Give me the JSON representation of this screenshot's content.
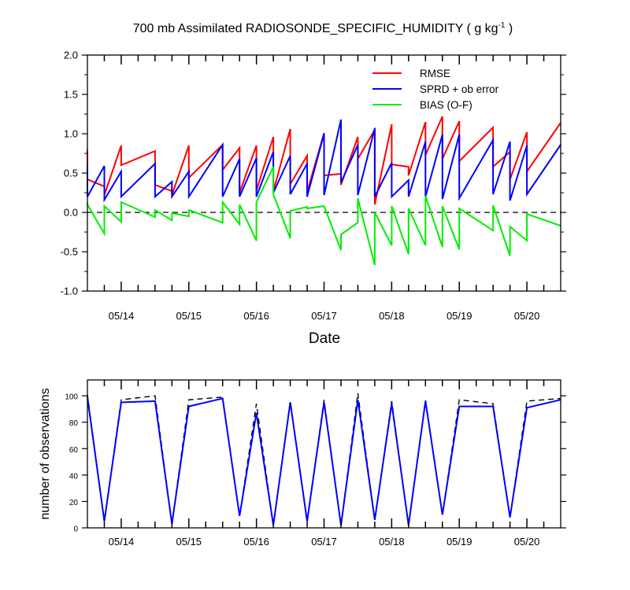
{
  "colors": {
    "rmse": "#ff0000",
    "sprd": "#0000ff",
    "bias": "#00ee00",
    "obs_possible": "#000000",
    "obs_used": "#0000ff",
    "axis": "#000000"
  },
  "chart_data": [
    {
      "type": "line",
      "title_main": "700 mb Assimilated RADIOSONDE_SPECIFIC_HUMIDITY ( g kg",
      "title_sup": "-1",
      "title_end": " )",
      "xlabel": "Date",
      "ylabel": "",
      "xlim": [
        0,
        168
      ],
      "ylim": [
        -1.0,
        2.0
      ],
      "yticks": [
        -1.0,
        -0.5,
        0.0,
        0.5,
        1.0,
        1.5,
        2.0
      ],
      "ytick_labels": [
        "-1.0",
        "-0.5",
        "0.0",
        "0.5",
        "1.0",
        "1.5",
        "2.0"
      ],
      "xticks": [
        12,
        36,
        60,
        84,
        108,
        132,
        156
      ],
      "xtick_labels": [
        "05/14",
        "05/15",
        "05/16",
        "05/17",
        "05/18",
        "05/19",
        "05/20"
      ],
      "zero_line": true,
      "legend": [
        {
          "key": "rmse",
          "label": "RMSE"
        },
        {
          "key": "sprd",
          "label": "SPRD + ob error"
        },
        {
          "key": "bias",
          "label": "BIAS (O-F)"
        }
      ],
      "series": [
        {
          "name": "RMSE",
          "key": "rmse",
          "x": [
            0,
            0,
            6,
            6,
            12,
            12,
            24,
            24,
            30,
            30,
            36,
            36,
            48,
            48,
            54,
            54,
            60,
            60,
            66,
            66,
            72,
            72,
            78,
            78,
            84,
            84,
            90,
            90,
            96,
            96,
            102,
            102,
            108,
            108,
            114,
            114,
            120,
            120,
            126,
            126,
            132,
            132,
            144,
            144,
            150,
            150,
            156,
            156,
            168
          ],
          "y": [
            0.8,
            0.42,
            0.33,
            0.22,
            0.85,
            0.6,
            0.78,
            0.35,
            0.27,
            0.22,
            0.85,
            0.44,
            0.86,
            0.54,
            0.82,
            0.25,
            0.85,
            0.28,
            0.96,
            0.27,
            1.06,
            0.36,
            0.72,
            0.26,
            1.01,
            0.47,
            0.49,
            0.35,
            0.96,
            0.68,
            1.05,
            0.1,
            1.12,
            0.61,
            0.58,
            0.47,
            1.15,
            0.73,
            1.22,
            0.68,
            1.16,
            0.65,
            1.08,
            0.58,
            0.77,
            0.42,
            1.02,
            0.52,
            1.14
          ]
        },
        {
          "name": "SPRD + ob error",
          "key": "sprd",
          "x": [
            0,
            0,
            6,
            6,
            12,
            12,
            24,
            24,
            30,
            30,
            36,
            36,
            48,
            48,
            54,
            54,
            60,
            60,
            66,
            66,
            72,
            72,
            78,
            78,
            84,
            84,
            90,
            90,
            96,
            96,
            102,
            102,
            108,
            108,
            114,
            114,
            120,
            120,
            126,
            126,
            132,
            132,
            144,
            144,
            150,
            150,
            156,
            156,
            168
          ],
          "y": [
            0.59,
            0.2,
            0.59,
            0.16,
            0.52,
            0.2,
            0.62,
            0.2,
            0.39,
            0.2,
            0.52,
            0.2,
            0.86,
            0.2,
            0.68,
            0.2,
            0.69,
            0.2,
            0.77,
            0.25,
            0.72,
            0.23,
            0.62,
            0.2,
            1.0,
            0.22,
            1.18,
            0.38,
            0.86,
            0.22,
            1.07,
            0.2,
            0.63,
            0.2,
            0.41,
            0.2,
            0.9,
            0.2,
            0.99,
            0.17,
            0.99,
            0.18,
            0.92,
            0.23,
            0.9,
            0.15,
            0.85,
            0.23,
            0.86
          ]
        },
        {
          "name": "BIAS (O-F)",
          "key": "bias",
          "x": [
            0,
            0,
            6,
            6,
            12,
            12,
            24,
            24,
            30,
            30,
            36,
            36,
            48,
            48,
            54,
            54,
            60,
            60,
            66,
            66,
            72,
            72,
            78,
            78,
            84,
            84,
            90,
            90,
            96,
            96,
            102,
            102,
            108,
            108,
            114,
            114,
            120,
            120,
            126,
            126,
            132,
            132,
            144,
            144,
            150,
            150,
            156,
            156,
            168
          ],
          "y": [
            0.12,
            0.1,
            -0.27,
            0.08,
            -0.12,
            0.13,
            -0.06,
            0.03,
            -0.1,
            -0.01,
            -0.05,
            0.03,
            -0.13,
            0.13,
            -0.15,
            0.1,
            -0.36,
            0.13,
            0.58,
            0.23,
            -0.33,
            0.02,
            0.07,
            0.05,
            0.08,
            0.08,
            -0.48,
            -0.28,
            -0.13,
            0.18,
            -0.67,
            0.0,
            -0.42,
            0.08,
            -0.53,
            0.05,
            -0.42,
            0.21,
            -0.44,
            0.08,
            -0.47,
            0.05,
            -0.23,
            0.09,
            -0.55,
            -0.18,
            -0.36,
            -0.02,
            -0.17
          ]
        }
      ]
    },
    {
      "type": "line",
      "title": "",
      "xlabel": "",
      "ylabel": "number of observations",
      "xlim": [
        0,
        168
      ],
      "ylim": [
        0,
        112
      ],
      "yticks": [
        0,
        20,
        40,
        60,
        80,
        100
      ],
      "ytick_labels": [
        "0",
        "20",
        "40",
        "60",
        "80",
        "100"
      ],
      "xticks": [
        12,
        36,
        60,
        84,
        108,
        132,
        156
      ],
      "xtick_labels": [
        "05/14",
        "05/15",
        "05/16",
        "05/17",
        "05/18",
        "05/19",
        "05/20"
      ],
      "series": [
        {
          "name": "possible",
          "key": "obs_possible",
          "dashed": true,
          "x": [
            0,
            6,
            12,
            24,
            30,
            36,
            48,
            54,
            60,
            66,
            72,
            78,
            84,
            90,
            96,
            102,
            108,
            114,
            120,
            126,
            132,
            144,
            150,
            156,
            168
          ],
          "y": [
            101,
            5,
            97,
            100,
            3,
            97,
            99,
            9,
            94,
            2,
            96,
            5,
            97,
            2,
            102,
            6,
            96,
            2,
            97,
            10,
            97,
            94,
            8,
            96,
            98
          ]
        },
        {
          "name": "used",
          "key": "obs_used",
          "dashed": false,
          "x": [
            0,
            6,
            12,
            24,
            30,
            36,
            48,
            54,
            60,
            66,
            72,
            78,
            84,
            90,
            96,
            102,
            108,
            114,
            120,
            126,
            132,
            144,
            150,
            156,
            168
          ],
          "y": [
            99,
            5,
            95,
            96,
            3,
            92,
            98,
            9,
            87,
            2,
            95,
            5,
            95,
            2,
            97,
            6,
            94,
            2,
            96,
            10,
            92,
            92,
            8,
            91,
            97
          ]
        }
      ]
    }
  ]
}
